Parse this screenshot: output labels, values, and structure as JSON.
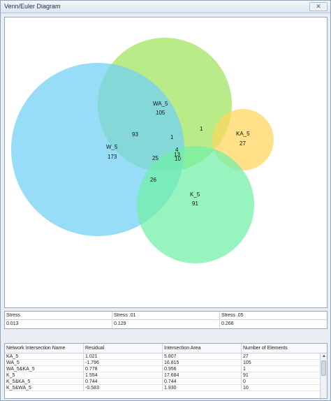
{
  "window": {
    "title": "Venn/Euler Diagram",
    "close_label": "✕"
  },
  "diagram": {
    "sets": [
      {
        "name": "WA_5",
        "count": "105",
        "color": "#9ee35a"
      },
      {
        "name": "W_5",
        "count": "173",
        "color": "#6fd0f5"
      },
      {
        "name": "KA_5",
        "count": "27",
        "color": "#ffd65c"
      },
      {
        "name": "K_5",
        "count": "91",
        "color": "#6ff0a6"
      }
    ],
    "region_counts": [
      "93",
      "1",
      "1",
      "4",
      "13",
      "25",
      "10",
      "26"
    ]
  },
  "stress": {
    "headers": [
      "Stress",
      "Stress .01",
      "Stress .05"
    ],
    "values": [
      "0.013",
      "0.129",
      "0.266"
    ]
  },
  "intersections": {
    "headers": [
      "Network Intersection Name",
      "Residual",
      "Intersection Area",
      "Number of Elements"
    ],
    "rows": [
      [
        "KA_5",
        "1.021",
        "5.807",
        "27"
      ],
      [
        "WA_5",
        "-1.796",
        "16.815",
        "105"
      ],
      [
        "WA_5&KA_5",
        "0.778",
        "0.956",
        "1"
      ],
      [
        "K_5",
        "1.554",
        "17.684",
        "91"
      ],
      [
        "K_5&KA_5",
        "0.744",
        "0.744",
        "0"
      ],
      [
        "K_5&WA_5",
        "-0.583",
        "1.930",
        "10"
      ]
    ]
  }
}
